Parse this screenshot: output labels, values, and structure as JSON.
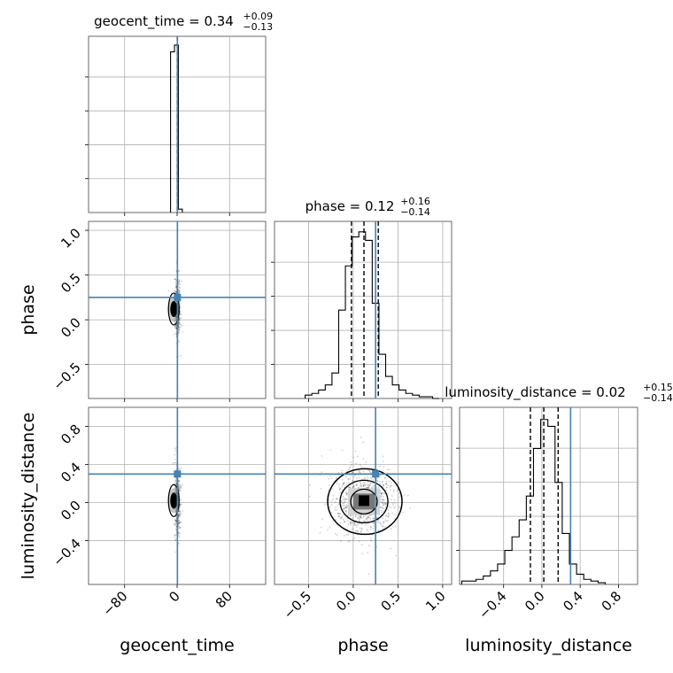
{
  "chart_data": {
    "type": "corner",
    "grid": true,
    "parameters": [
      "geocent_time",
      "phase",
      "luminosity_distance"
    ],
    "axis_labels": {
      "geocent_time": "geocent_time",
      "phase": "phase",
      "luminosity_distance": "luminosity_distance"
    },
    "ranges": {
      "geocent_time": [
        -135,
        135
      ],
      "phase": [
        -0.88,
        1.1
      ],
      "luminosity_distance": [
        -0.86,
        1.0
      ]
    },
    "ticks": {
      "geocent_time": {
        "values": [
          -80,
          0,
          80
        ],
        "labels": [
          "−80",
          "0",
          "80"
        ]
      },
      "phase": {
        "values": [
          -0.5,
          0.0,
          0.5,
          1.0
        ],
        "labels": [
          "−0.5",
          "0.0",
          "0.5",
          "1.0"
        ]
      },
      "luminosity_distance": {
        "values": [
          -0.4,
          0.0,
          0.4,
          0.8
        ],
        "labels": [
          "−0.4",
          "0.0",
          "0.4",
          "0.8"
        ]
      }
    },
    "titles": {
      "geocent_time": {
        "main": "geocent_time = 0.34",
        "sup": "+0.09",
        "sub": "−0.13"
      },
      "phase": {
        "main": "phase = 0.12",
        "sup": "+0.16",
        "sub": "−0.14"
      },
      "luminosity_distance": {
        "main": "luminosity_distance = 0.02",
        "sup": "+0.15",
        "sub": "−0.14"
      }
    },
    "truths": {
      "geocent_time": 0.5,
      "phase": 0.25,
      "luminosity_distance": 0.3
    },
    "quantiles": {
      "geocent_time": [
        0.21,
        0.34,
        0.43
      ],
      "phase": [
        -0.02,
        0.12,
        0.28
      ],
      "luminosity_distance": [
        -0.12,
        0.02,
        0.17
      ]
    },
    "colors": {
      "truth": "#4682b4",
      "hist": "#000000",
      "grid": "#b0b0b0"
    },
    "histograms": {
      "geocent_time": {
        "x": [
          -7,
          -1,
          5
        ],
        "counts": [
          0.95,
          0.99,
          0.02
        ]
      },
      "phase": {
        "x": [
          -0.5,
          -0.425,
          -0.35,
          -0.275,
          -0.2,
          -0.125,
          -0.05,
          0.025,
          0.1,
          0.175,
          0.25,
          0.325,
          0.4,
          0.475,
          0.55,
          0.625,
          0.7,
          0.775,
          0.85,
          0.925
        ],
        "counts": [
          0.02,
          0.03,
          0.05,
          0.08,
          0.15,
          0.52,
          0.78,
          0.95,
          0.98,
          0.93,
          0.56,
          0.26,
          0.13,
          0.08,
          0.05,
          0.03,
          0.02,
          0.01,
          0.01,
          0.0
        ]
      },
      "luminosity_distance": {
        "x": [
          -0.8,
          -0.725,
          -0.65,
          -0.575,
          -0.5,
          -0.425,
          -0.35,
          -0.275,
          -0.2,
          -0.125,
          -0.05,
          0.025,
          0.1,
          0.175,
          0.25,
          0.325,
          0.4,
          0.475,
          0.55,
          0.625
        ],
        "counts": [
          0.02,
          0.02,
          0.03,
          0.05,
          0.08,
          0.12,
          0.2,
          0.28,
          0.38,
          0.52,
          0.8,
          0.97,
          0.93,
          0.6,
          0.3,
          0.12,
          0.06,
          0.03,
          0.02,
          0.01
        ]
      }
    }
  }
}
